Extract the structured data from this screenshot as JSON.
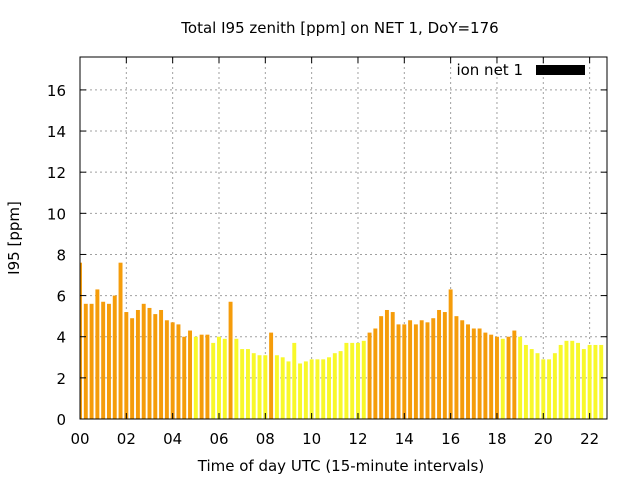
{
  "chart_data": {
    "type": "bar",
    "title": "Total I95 zenith [ppm] on NET 1, DoY=176",
    "xlabel": "Time of day UTC (15-minute intervals)",
    "ylabel": "I95 [ppm]",
    "xlim": [
      0,
      22.75
    ],
    "ylim": [
      0,
      17.6
    ],
    "xticks": [
      0,
      2,
      4,
      6,
      8,
      10,
      12,
      14,
      16,
      18,
      20,
      22
    ],
    "xtick_labels": [
      "00",
      "02",
      "04",
      "06",
      "08",
      "10",
      "12",
      "14",
      "16",
      "18",
      "20",
      "22"
    ],
    "yticks": [
      0,
      2,
      4,
      6,
      8,
      10,
      12,
      14,
      16
    ],
    "grid": true,
    "legend": {
      "label": "ion net 1",
      "color": "#000000",
      "position": "top-right"
    },
    "colors": {
      "orange": "#f59c0a",
      "yellow": "#f8f82a"
    },
    "bar_width_hours": 0.17,
    "x_start": 0,
    "x_step": 0.25,
    "values": [
      7.6,
      5.6,
      5.6,
      6.3,
      5.7,
      5.6,
      6.0,
      7.6,
      5.2,
      4.9,
      5.3,
      5.6,
      5.4,
      5.1,
      5.3,
      4.8,
      4.7,
      4.6,
      4.0,
      4.3,
      4.0,
      4.1,
      4.1,
      3.7,
      4.0,
      3.9,
      5.7,
      3.9,
      3.4,
      3.4,
      3.2,
      3.1,
      3.1,
      4.2,
      3.1,
      3.0,
      2.8,
      3.7,
      2.7,
      2.8,
      2.9,
      2.9,
      2.9,
      3.0,
      3.2,
      3.3,
      3.7,
      3.7,
      3.7,
      3.8,
      4.2,
      4.4,
      5.0,
      5.3,
      5.2,
      4.6,
      4.6,
      4.8,
      4.6,
      4.8,
      4.7,
      4.9,
      5.3,
      5.2,
      6.3,
      5.0,
      4.8,
      4.6,
      4.4,
      4.4,
      4.2,
      4.1,
      4.0,
      3.9,
      4.0,
      4.3,
      4.0,
      3.6,
      3.4,
      3.2,
      2.9,
      2.9,
      3.2,
      3.6,
      3.8,
      3.8,
      3.7,
      3.4,
      3.6,
      3.6,
      3.6
    ],
    "colors_per_bar": [
      "orange",
      "orange",
      "orange",
      "orange",
      "orange",
      "orange",
      "orange",
      "orange",
      "orange",
      "orange",
      "orange",
      "orange",
      "orange",
      "orange",
      "orange",
      "orange",
      "orange",
      "orange",
      "orange",
      "orange",
      "yellow",
      "orange",
      "orange",
      "yellow",
      "yellow",
      "yellow",
      "orange",
      "yellow",
      "yellow",
      "yellow",
      "yellow",
      "yellow",
      "yellow",
      "orange",
      "yellow",
      "yellow",
      "yellow",
      "yellow",
      "yellow",
      "yellow",
      "yellow",
      "yellow",
      "yellow",
      "yellow",
      "yellow",
      "yellow",
      "yellow",
      "yellow",
      "yellow",
      "yellow",
      "orange",
      "orange",
      "orange",
      "orange",
      "orange",
      "orange",
      "orange",
      "orange",
      "orange",
      "orange",
      "orange",
      "orange",
      "orange",
      "orange",
      "orange",
      "orange",
      "orange",
      "orange",
      "orange",
      "orange",
      "orange",
      "orange",
      "orange",
      "yellow",
      "orange",
      "orange",
      "yellow",
      "yellow",
      "yellow",
      "yellow",
      "yellow",
      "yellow",
      "yellow",
      "yellow",
      "yellow",
      "yellow",
      "yellow",
      "yellow",
      "yellow",
      "yellow",
      "yellow"
    ]
  }
}
